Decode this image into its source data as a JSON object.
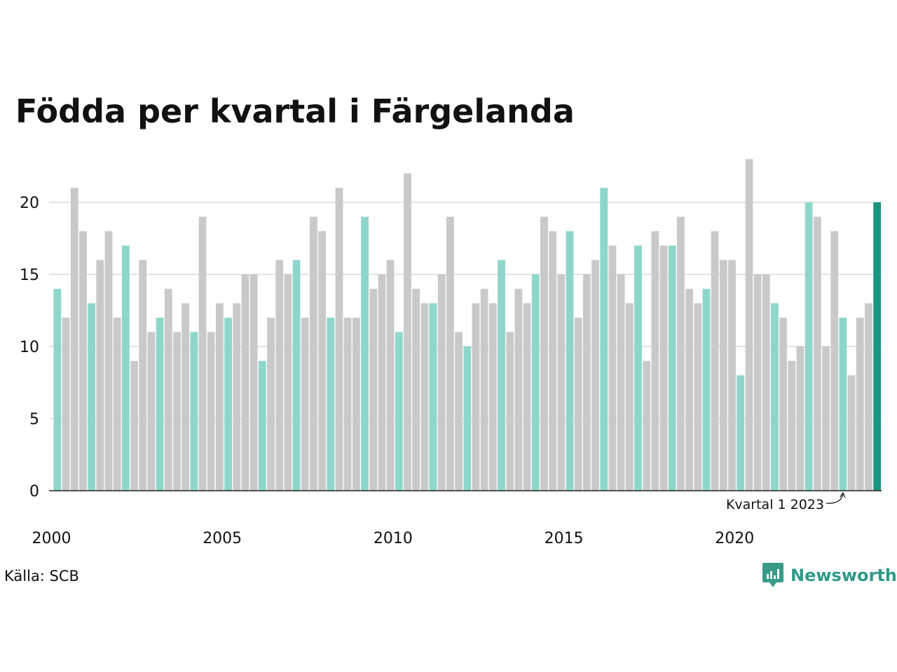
{
  "chart_data": {
    "type": "bar",
    "title": "Födda per kvartal i Färgelanda",
    "source": "Källa: SCB",
    "brand": "Newsworthy",
    "annotation": "Kvartal 1 2023",
    "ylim": [
      0,
      23
    ],
    "yticks": [
      0,
      5,
      10,
      15,
      20
    ],
    "xtick_labels": [
      "2000",
      "2005",
      "2010",
      "2015",
      "2020"
    ],
    "grid": true,
    "start_year": 2000,
    "values": [
      14,
      12,
      21,
      18,
      13,
      16,
      18,
      12,
      17,
      9,
      16,
      11,
      12,
      14,
      11,
      13,
      11,
      19,
      11,
      13,
      12,
      13,
      15,
      15,
      9,
      12,
      16,
      15,
      16,
      12,
      19,
      18,
      12,
      21,
      12,
      12,
      19,
      14,
      15,
      16,
      11,
      22,
      14,
      13,
      13,
      15,
      19,
      11,
      10,
      13,
      14,
      13,
      16,
      11,
      14,
      13,
      15,
      19,
      18,
      15,
      18,
      12,
      15,
      16,
      21,
      17,
      15,
      13,
      17,
      9,
      18,
      17,
      17,
      19,
      14,
      13,
      14,
      18,
      16,
      16,
      8,
      23,
      15,
      15,
      13,
      12,
      9,
      10,
      20,
      19,
      10,
      18,
      12,
      8,
      12,
      13,
      20
    ],
    "colors": {
      "q1": "#8ed6cb",
      "other": "#c9c9c9",
      "highlight": "#1a9580",
      "grid": "#e3e3e3",
      "axis": "#222222"
    }
  }
}
